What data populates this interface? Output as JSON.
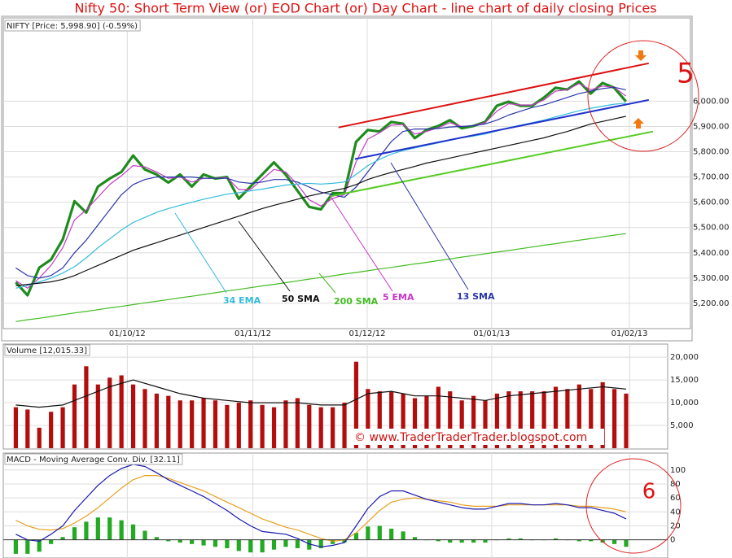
{
  "title": "Nifty 50: Short Term View (or) EOD Chart (or) Day Chart - line chart of daily closing Prices",
  "chart_data": [
    {
      "type": "line",
      "label": "NIFTY [Price: 5,998.90] (-0.59%)",
      "annotation": "5",
      "x": [
        0,
        2,
        4,
        6,
        8,
        10,
        12,
        14,
        16,
        18,
        20,
        22,
        24,
        26,
        28,
        30,
        32,
        34,
        36,
        38,
        40,
        42,
        44,
        46,
        48,
        50,
        52,
        54,
        56,
        58,
        60,
        62,
        64,
        66,
        68,
        70,
        72,
        74,
        76,
        78,
        80,
        82,
        84,
        86,
        88,
        90,
        92,
        94,
        96,
        98,
        100,
        102,
        104
      ],
      "xlim": [
        -2,
        115
      ],
      "xticks": [
        {
          "value": 19,
          "label": "01/10/12"
        },
        {
          "value": 40.4,
          "label": "01/11/12"
        },
        {
          "value": 59.9,
          "label": "01/12/12"
        },
        {
          "value": 81.1,
          "label": "01/01/13"
        },
        {
          "value": 104.6,
          "label": "01/02/13"
        }
      ],
      "ylim": [
        5100,
        6320
      ],
      "yticks": [
        {
          "value": 5200,
          "label": "5,200.00"
        },
        {
          "value": 5300,
          "label": "5,300.00"
        },
        {
          "value": 5400,
          "label": "5,400.00"
        },
        {
          "value": 5500,
          "label": "5,500.00"
        },
        {
          "value": 5600,
          "label": "5,600.00"
        },
        {
          "value": 5700,
          "label": "5,700.00"
        },
        {
          "value": 5800,
          "label": "5,800.00"
        },
        {
          "value": 5900,
          "label": "5,900.00"
        },
        {
          "value": 6000,
          "label": "6,000.00"
        }
      ],
      "grid": true,
      "series": [
        {
          "color": "#1d8c1d",
          "values": [
            5283,
            5232,
            5341,
            5373,
            5453,
            5604,
            5559,
            5662,
            5694,
            5720,
            5785,
            5730,
            5710,
            5678,
            5710,
            5662,
            5710,
            5694,
            5700,
            5614,
            5662,
            5710,
            5758,
            5710,
            5646,
            5582,
            5572,
            5636,
            5636,
            5839,
            5886,
            5880,
            5918,
            5911,
            5854,
            5886,
            5902,
            5925,
            5893,
            5902,
            5918,
            5982,
            5998,
            5982,
            5982,
            6014,
            6053,
            6046,
            6078,
            6030,
            6072,
            6053,
            5999
          ]
        },
        {
          "name": "5 EMA",
          "color": "#c838c8",
          "values": [
            5290,
            5260,
            5300,
            5350,
            5420,
            5530,
            5570,
            5620,
            5670,
            5705,
            5745,
            5740,
            5720,
            5695,
            5700,
            5680,
            5695,
            5695,
            5698,
            5650,
            5650,
            5690,
            5730,
            5720,
            5670,
            5610,
            5585,
            5615,
            5630,
            5760,
            5850,
            5875,
            5905,
            5908,
            5870,
            5880,
            5895,
            5915,
            5900,
            5903,
            5915,
            5960,
            5990,
            5985,
            5985,
            6005,
            6040,
            6045,
            6070,
            6045,
            6060,
            6055,
            6020
          ]
        },
        {
          "name": "13 SMA",
          "color": "#2a35a8",
          "values": [
            5340,
            5310,
            5300,
            5310,
            5340,
            5400,
            5450,
            5510,
            5570,
            5630,
            5670,
            5690,
            5700,
            5700,
            5700,
            5700,
            5695,
            5695,
            5695,
            5680,
            5675,
            5680,
            5690,
            5690,
            5680,
            5660,
            5640,
            5630,
            5620,
            5660,
            5720,
            5780,
            5840,
            5880,
            5890,
            5890,
            5892,
            5898,
            5900,
            5903,
            5910,
            5925,
            5945,
            5960,
            5975,
            5985,
            6000,
            6015,
            6030,
            6040,
            6050,
            6055,
            6045
          ]
        },
        {
          "name": "34 EMA",
          "color": "#33bbdd",
          "values": [
            5260,
            5270,
            5285,
            5300,
            5320,
            5345,
            5380,
            5420,
            5455,
            5490,
            5520,
            5540,
            5560,
            5575,
            5588,
            5600,
            5612,
            5622,
            5632,
            5638,
            5645,
            5652,
            5660,
            5668,
            5672,
            5675,
            5672,
            5675,
            5680,
            5710,
            5745,
            5770,
            5790,
            5805,
            5815,
            5825,
            5835,
            5845,
            5855,
            5862,
            5870,
            5882,
            5895,
            5905,
            5915,
            5925,
            5938,
            5950,
            5962,
            5972,
            5980,
            5988,
            5992
          ]
        },
        {
          "name": "50 SMA",
          "color": "#111111",
          "values": [
            5270,
            5275,
            5280,
            5285,
            5295,
            5310,
            5330,
            5350,
            5370,
            5390,
            5410,
            5425,
            5440,
            5455,
            5470,
            5485,
            5500,
            5515,
            5530,
            5545,
            5560,
            5575,
            5588,
            5600,
            5612,
            5625,
            5635,
            5645,
            5655,
            5670,
            5690,
            5705,
            5718,
            5730,
            5742,
            5755,
            5765,
            5775,
            5785,
            5795,
            5805,
            5815,
            5825,
            5835,
            5845,
            5855,
            5868,
            5880,
            5895,
            5910,
            5920,
            5930,
            5940
          ]
        },
        {
          "name": "200 SMA",
          "color": "#44bb22",
          "values": [
            5128,
            5135,
            5141,
            5148,
            5155,
            5162,
            5168,
            5175,
            5182,
            5188,
            5195,
            5202,
            5208,
            5215,
            5222,
            5228,
            5235,
            5242,
            5249,
            5255,
            5262,
            5269,
            5275,
            5282,
            5289,
            5296,
            5302,
            5309,
            5316,
            5322,
            5329,
            5336,
            5342,
            5349,
            5356,
            5362,
            5369,
            5376,
            5383,
            5389,
            5396,
            5403,
            5409,
            5416,
            5423,
            5430,
            5436,
            5443,
            5450,
            5456,
            5463,
            5470,
            5476
          ]
        },
        {
          "color": "#dd1111",
          "x": [
            55,
            107.9
          ],
          "values": [
            5896,
            6150
          ]
        },
        {
          "color": "#2233cc",
          "x": [
            57.8,
            107.9
          ],
          "values": [
            5771,
            6005
          ]
        },
        {
          "color": "#55cc22",
          "x": [
            53.5,
            108.6
          ],
          "values": [
            5623,
            5880
          ]
        }
      ]
    },
    {
      "type": "bar",
      "label": "Volume [12,015.33]",
      "watermark": "© www.TraderTraderTrader.blogspot.com",
      "x": [
        0,
        2,
        4,
        6,
        8,
        10,
        12,
        14,
        16,
        18,
        20,
        22,
        24,
        26,
        28,
        30,
        32,
        34,
        36,
        38,
        40,
        42,
        44,
        46,
        48,
        50,
        52,
        54,
        56,
        58,
        60,
        62,
        64,
        66,
        68,
        70,
        72,
        74,
        76,
        78,
        80,
        82,
        84,
        86,
        88,
        90,
        92,
        94,
        96,
        98,
        100,
        102,
        104
      ],
      "xlim": [
        -2,
        110.8
      ],
      "ylim": [
        0,
        22700
      ],
      "yticks": [
        {
          "value": 5000,
          "label": "5,000"
        },
        {
          "value": 10000,
          "label": "10,000"
        },
        {
          "value": 15000,
          "label": "15,000"
        },
        {
          "value": 20000,
          "label": "20,000"
        }
      ],
      "grid": true,
      "series": [
        {
          "color": "#b30d0d",
          "values": [
            9000,
            8500,
            4500,
            8000,
            9000,
            14000,
            18000,
            14000,
            15500,
            16000,
            14000,
            13000,
            12000,
            11500,
            10500,
            10500,
            11000,
            10500,
            9500,
            10000,
            10500,
            9500,
            9000,
            10500,
            11000,
            9500,
            9000,
            9000,
            10000,
            19000,
            13000,
            12500,
            12500,
            12000,
            11000,
            11500,
            13500,
            12500,
            10500,
            11500,
            10500,
            12000,
            12500,
            12500,
            12500,
            12500,
            13500,
            13000,
            14000,
            13000,
            14500,
            13000,
            12000
          ]
        },
        {
          "type": "line",
          "color": "#111111",
          "x": [
            0,
            4,
            8,
            12,
            16,
            20,
            24,
            28,
            32,
            36,
            40,
            44,
            48,
            52,
            56,
            60,
            64,
            68,
            72,
            76,
            80,
            84,
            88,
            92,
            96,
            100,
            104
          ],
          "values": [
            9500,
            9000,
            9500,
            11500,
            13500,
            15000,
            13500,
            12000,
            11000,
            10500,
            10000,
            10000,
            10000,
            9500,
            9500,
            12000,
            12500,
            11500,
            11500,
            11000,
            10500,
            11500,
            12000,
            12500,
            13000,
            13500,
            13000
          ]
        }
      ]
    },
    {
      "type": "line",
      "label": "MACD - Moving Average Conv. Div. [32.11]",
      "annotation": "6",
      "x": [
        0,
        2,
        4,
        6,
        8,
        10,
        12,
        14,
        16,
        18,
        20,
        22,
        24,
        26,
        28,
        30,
        32,
        34,
        36,
        38,
        40,
        42,
        44,
        46,
        48,
        50,
        52,
        54,
        56,
        58,
        60,
        62,
        64,
        66,
        68,
        70,
        72,
        74,
        76,
        78,
        80,
        82,
        84,
        86,
        88,
        90,
        92,
        94,
        96,
        98,
        100,
        102,
        104
      ],
      "xlim": [
        -2,
        110.8
      ],
      "ylim": [
        -26,
        123
      ],
      "yticks": [
        0,
        20,
        40,
        60,
        80,
        100
      ],
      "grid": true,
      "series": [
        {
          "type": "bar",
          "color": "#22aa22",
          "values": [
            -20,
            -20,
            -17,
            -6,
            4,
            18,
            26,
            32,
            32,
            28,
            22,
            13,
            4,
            -2,
            -4,
            -6,
            -8,
            -10,
            -12,
            -16,
            -18,
            -18,
            -14,
            -10,
            -12,
            -14,
            -12,
            -6,
            -4,
            10,
            19,
            20,
            16,
            12,
            4,
            0,
            -2,
            -4,
            -4,
            -4,
            -4,
            0,
            2,
            2,
            0,
            0,
            2,
            0,
            -2,
            -2,
            -4,
            -6,
            -10
          ]
        },
        {
          "color": "#e8a020",
          "values": [
            28,
            20,
            15,
            14,
            16,
            24,
            34,
            46,
            60,
            74,
            86,
            92,
            92,
            88,
            82,
            76,
            70,
            62,
            54,
            46,
            38,
            30,
            24,
            18,
            14,
            8,
            2,
            -2,
            0,
            10,
            26,
            42,
            54,
            58,
            60,
            58,
            56,
            54,
            50,
            48,
            48,
            48,
            50,
            50,
            50,
            50,
            50,
            50,
            48,
            48,
            46,
            44,
            40
          ]
        },
        {
          "color": "#1a1ab0",
          "values": [
            8,
            0,
            -2,
            8,
            20,
            42,
            60,
            78,
            92,
            102,
            108,
            105,
            96,
            86,
            78,
            70,
            62,
            52,
            42,
            30,
            20,
            12,
            10,
            8,
            2,
            -6,
            -10,
            -8,
            -4,
            20,
            45,
            62,
            70,
            70,
            64,
            58,
            54,
            50,
            46,
            44,
            44,
            48,
            52,
            52,
            50,
            50,
            52,
            50,
            46,
            46,
            42,
            38,
            30
          ]
        }
      ]
    }
  ]
}
